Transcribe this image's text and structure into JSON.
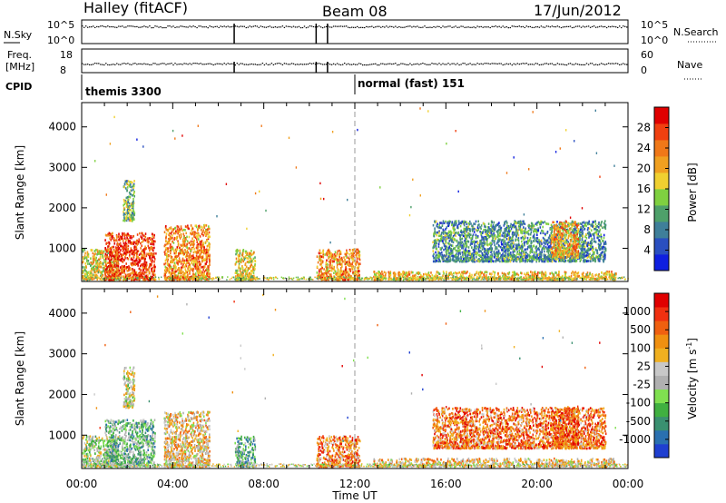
{
  "header": {
    "station": "Halley (fitACF)",
    "beam": "Beam 08",
    "date": "17/Jun/2012"
  },
  "strips": {
    "nsky": {
      "label": "N.Sky",
      "ticks": [
        "10^5",
        "10^0"
      ]
    },
    "nsearch": {
      "label": "N.Search",
      "ticks": [
        "10^5",
        "10^0"
      ]
    },
    "freq": {
      "label_line1": "Freq.",
      "label_line2": "[MHz]",
      "ticks": [
        "18",
        "8"
      ]
    },
    "nave": {
      "label": "Nave",
      "ticks": [
        "60",
        "0"
      ]
    },
    "cpid": {
      "label": "CPID",
      "segments": [
        {
          "label": "themis 3300",
          "start_hour": 0
        },
        {
          "label": "normal (fast) 151",
          "start_hour": 12
        }
      ]
    }
  },
  "chart_data": [
    {
      "type": "heatmap",
      "title": "",
      "ylabel": "Slant Range [km]",
      "xlabel": "",
      "xlim": [
        0,
        24
      ],
      "ylim": [
        180,
        4600
      ],
      "yticks": [
        "1000",
        "2000",
        "3000",
        "4000"
      ],
      "colorbar": {
        "label": "Power [dB]",
        "range": [
          0,
          32
        ],
        "ticks": [
          "4",
          "8",
          "12",
          "16",
          "20",
          "24",
          "28"
        ],
        "colors": [
          "#0f1fe0",
          "#2a4fc0",
          "#3f7f9a",
          "#4ea06a",
          "#7fd040",
          "#f0d030",
          "#f0a020",
          "#f07818",
          "#f04010",
          "#e00000"
        ]
      },
      "echo_regions": [
        {
          "hours": [
            0.0,
            1.6
          ],
          "range_km": [
            250,
            1000
          ],
          "level": 0.55
        },
        {
          "hours": [
            1.0,
            3.2
          ],
          "range_km": [
            250,
            1400
          ],
          "level": 0.85
        },
        {
          "hours": [
            1.8,
            2.3
          ],
          "range_km": [
            1700,
            2700
          ],
          "level": 0.4
        },
        {
          "hours": [
            3.6,
            5.6
          ],
          "range_km": [
            250,
            1600
          ],
          "level": 0.7
        },
        {
          "hours": [
            6.7,
            7.6
          ],
          "range_km": [
            250,
            1000
          ],
          "level": 0.55
        },
        {
          "hours": [
            10.3,
            12.2
          ],
          "range_km": [
            250,
            1000
          ],
          "level": 0.7
        },
        {
          "hours": [
            12.8,
            23.5
          ],
          "range_km": [
            250,
            450
          ],
          "level": 0.6
        },
        {
          "hours": [
            15.4,
            23.0
          ],
          "range_km": [
            700,
            1700
          ],
          "level": 0.3
        },
        {
          "hours": [
            20.6,
            21.8
          ],
          "range_km": [
            800,
            1700
          ],
          "level": 0.65
        }
      ]
    },
    {
      "type": "heatmap",
      "title": "",
      "ylabel": "Slant Range [km]",
      "xlabel": "Time UT",
      "xlim": [
        0,
        24
      ],
      "ylim": [
        180,
        4600
      ],
      "xticks": [
        "00:00",
        "04:00",
        "08:00",
        "12:00",
        "16:00",
        "20:00",
        "00:00"
      ],
      "yticks": [
        "1000",
        "2000",
        "3000",
        "4000"
      ],
      "colorbar": {
        "label_text": "Velocity",
        "label_units": "[m s",
        "label_sup": "-1",
        "label_close": "]",
        "range": [
          -1200,
          1200
        ],
        "ticks": [
          "1000",
          "500",
          "100",
          "25",
          "-25",
          "-100",
          "-500",
          "-1000"
        ],
        "colors": [
          "#1f3fd0",
          "#2a70b0",
          "#3a9070",
          "#40b040",
          "#80e050",
          "#b0b0b0",
          "#c8c8c8",
          "#f0b020",
          "#f09010",
          "#f06010",
          "#f03010",
          "#e00000"
        ]
      },
      "echo_regions": [
        {
          "hours": [
            0.0,
            1.6
          ],
          "range_km": [
            250,
            1000
          ],
          "level": 0.45
        },
        {
          "hours": [
            1.0,
            3.2
          ],
          "range_km": [
            250,
            1400
          ],
          "level": 0.35
        },
        {
          "hours": [
            1.8,
            2.3
          ],
          "range_km": [
            1700,
            2700
          ],
          "level": 0.5
        },
        {
          "hours": [
            3.6,
            5.6
          ],
          "range_km": [
            250,
            1600
          ],
          "level": 0.6
        },
        {
          "hours": [
            6.7,
            7.6
          ],
          "range_km": [
            250,
            1000
          ],
          "level": 0.3
        },
        {
          "hours": [
            10.3,
            12.2
          ],
          "range_km": [
            250,
            1000
          ],
          "level": 0.75
        },
        {
          "hours": [
            12.8,
            23.5
          ],
          "range_km": [
            250,
            450
          ],
          "level": 0.6
        },
        {
          "hours": [
            15.4,
            23.0
          ],
          "range_km": [
            700,
            1700
          ],
          "level": 0.75
        },
        {
          "hours": [
            20.6,
            21.8
          ],
          "range_km": [
            800,
            1700
          ],
          "level": 0.8
        }
      ]
    }
  ]
}
